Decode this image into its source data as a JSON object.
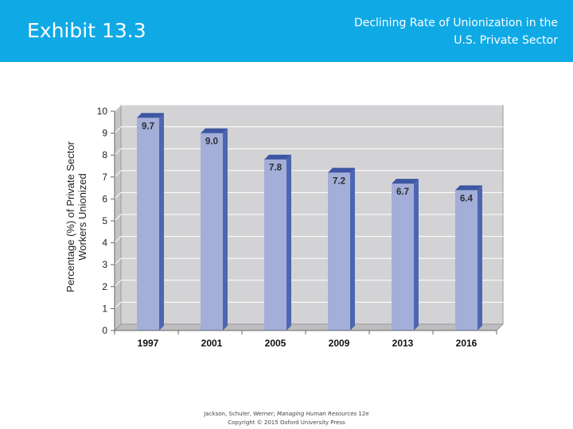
{
  "header": {
    "exhibit_label": "Exhibit 13.3",
    "chart_title_line1": "Declining Rate of Unionization in the",
    "chart_title_line2": "U.S. Private Sector",
    "background_color": "#0fa9e6"
  },
  "chart_data": {
    "type": "bar",
    "title": "Declining Rate of Unionization in the U.S. Private Sector",
    "categories": [
      "1997",
      "2001",
      "2005",
      "2009",
      "2013",
      "2016"
    ],
    "values": [
      9.7,
      9.0,
      7.8,
      7.2,
      6.7,
      6.4
    ],
    "value_labels": [
      "9.7",
      "9.0",
      "7.8",
      "7.2",
      "6.7",
      "6.4"
    ],
    "xlabel": "",
    "ylabel_line1": "Percentage (%) of Private Sector",
    "ylabel_line2": "Workers Unionized",
    "ylim": [
      0,
      10
    ],
    "yticks": [
      "0",
      "1",
      "2",
      "3",
      "4",
      "5",
      "6",
      "7",
      "8",
      "9",
      "10"
    ],
    "grid": true,
    "legend": "none",
    "bar_color": "#a3aed9",
    "bar_side_color": "#4e66b0",
    "plot_background": "#d3d3d5"
  },
  "footer": {
    "line1_prefix": "Jackson, Schuler, Werner; ",
    "line1_book": "Managing Human Resources",
    "line1_suffix": " 12e",
    "line2": "Copyright © 2015 Oxford University Press"
  }
}
